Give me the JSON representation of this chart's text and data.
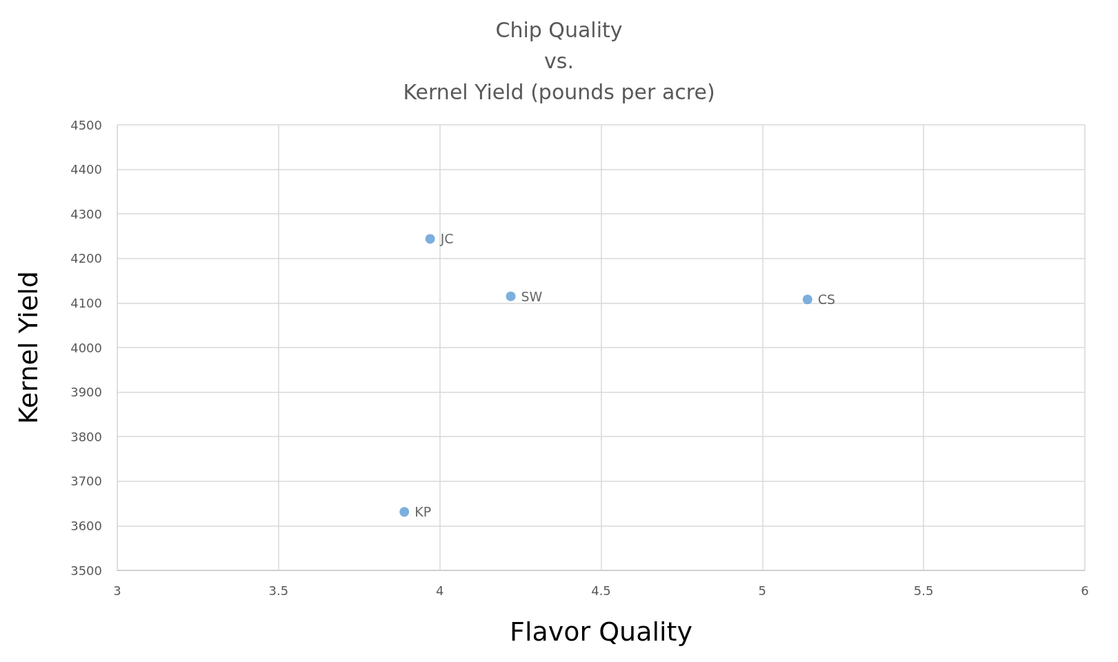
{
  "chart_data": {
    "type": "scatter",
    "title": "Chip Quality\nvs.\nKernel Yield (pounds per acre)",
    "xlabel": "Flavor Quality",
    "ylabel": "Kernel Yield",
    "x": [
      3.97,
      4.22,
      5.14,
      3.89
    ],
    "values": [
      4244,
      4115,
      4108,
      3631
    ],
    "value_labels": [
      "JC",
      "SW",
      "CS",
      "KP"
    ],
    "color": "#5b9bd5",
    "marker": "circle",
    "xlim": [
      3,
      6
    ],
    "xticks": [
      3,
      3.5,
      4,
      4.5,
      5,
      5.5,
      6
    ],
    "ylim": [
      3500,
      4500
    ],
    "yticks": [
      3500,
      3600,
      3700,
      3800,
      3900,
      4000,
      4100,
      4200,
      4300,
      4400,
      4500
    ],
    "grid": true
  }
}
